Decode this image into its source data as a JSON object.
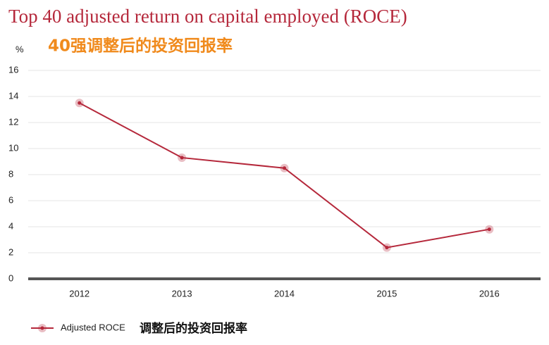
{
  "chart_data": {
    "type": "line",
    "title": "Top 40 adjusted return on capital employed (ROCE)",
    "subtitle": "40强调整后的投资回报率",
    "y_label": "%",
    "categories": [
      "2012",
      "2013",
      "2014",
      "2015",
      "2016"
    ],
    "series": [
      {
        "name": "Adjusted ROCE",
        "color": "#b5283b",
        "values": [
          13.5,
          9.3,
          8.5,
          2.4,
          3.8
        ]
      }
    ],
    "legend_annotation": "调整后的投资回报率",
    "ylim": [
      0,
      16
    ],
    "yticks": [
      0,
      2,
      4,
      6,
      8,
      10,
      12,
      14,
      16
    ],
    "grid": true
  }
}
